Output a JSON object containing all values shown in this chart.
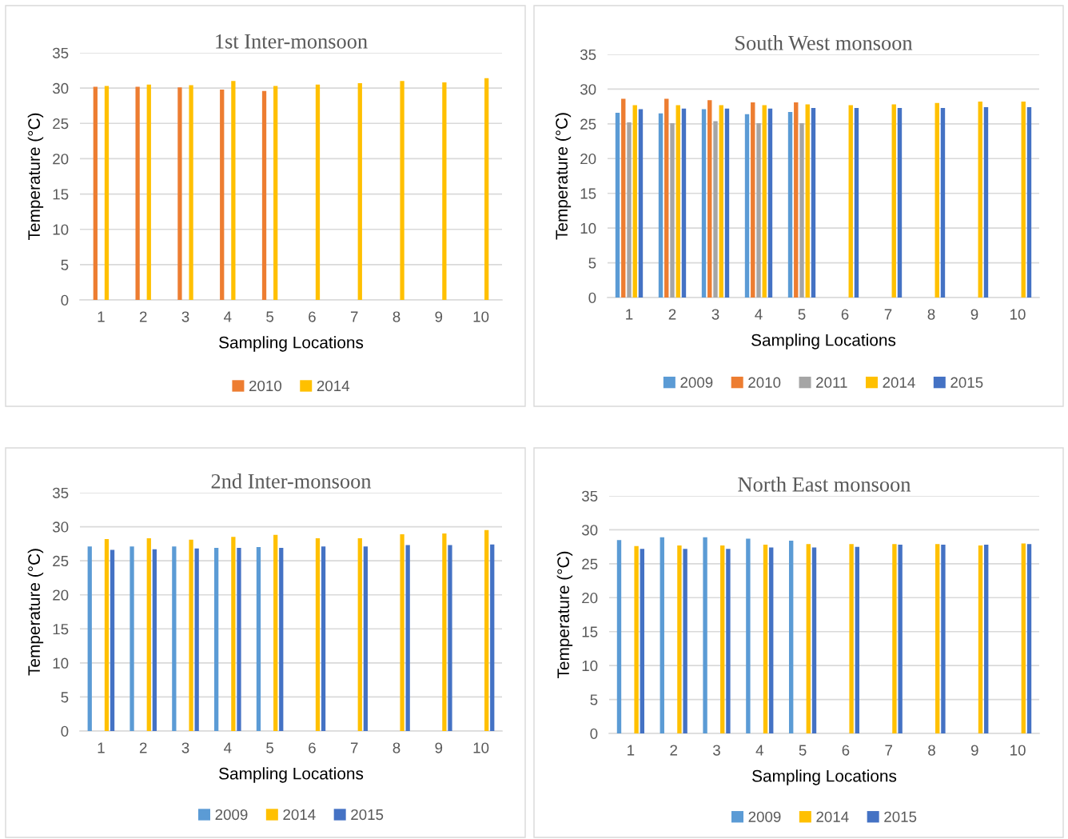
{
  "chart_data": [
    {
      "type": "bar",
      "title": "1st Inter-monsoon",
      "xlabel": "Sampling Locations",
      "ylabel": "Temperature (°C)",
      "categories": [
        "1",
        "2",
        "3",
        "4",
        "5",
        "6",
        "7",
        "8",
        "9",
        "10"
      ],
      "ylim": [
        0,
        35
      ],
      "yticks": [
        0,
        5,
        10,
        15,
        20,
        25,
        30,
        35
      ],
      "grid": "y",
      "legend": "bottom",
      "series": [
        {
          "values": [
            null,
            null,
            null,
            null,
            null,
            null,
            null,
            null,
            null,
            null
          ]
        },
        {
          "name": "2010",
          "color": "#ed7d31",
          "values": [
            30.2,
            30.2,
            30.1,
            29.8,
            29.6,
            null,
            null,
            null,
            null,
            null
          ]
        },
        {
          "values": [
            null,
            null,
            null,
            null,
            null,
            null,
            null,
            null,
            null,
            null
          ]
        },
        {
          "name": "2014",
          "color": "#ffc000",
          "values": [
            30.3,
            30.5,
            30.4,
            31.0,
            30.3,
            30.5,
            30.7,
            31.0,
            30.8,
            31.4
          ]
        },
        {
          "values": [
            null,
            null,
            null,
            null,
            null,
            null,
            null,
            null,
            null,
            null
          ]
        }
      ]
    },
    {
      "type": "bar",
      "title": "South West monsoon",
      "xlabel": "Sampling Locations",
      "ylabel": "Temperature (°C)",
      "categories": [
        "1",
        "2",
        "3",
        "4",
        "5",
        "6",
        "7",
        "8",
        "9",
        "10"
      ],
      "ylim": [
        0,
        35
      ],
      "yticks": [
        0,
        5,
        10,
        15,
        20,
        25,
        30,
        35
      ],
      "grid": "y",
      "legend": "bottom",
      "series": [
        {
          "name": "2009",
          "color": "#5b9bd5",
          "values": [
            26.6,
            26.5,
            27.1,
            26.4,
            26.7,
            null,
            null,
            null,
            null,
            null
          ]
        },
        {
          "name": "2010",
          "color": "#ed7d31",
          "values": [
            28.6,
            28.6,
            28.4,
            28.1,
            28.1,
            null,
            null,
            null,
            null,
            null
          ]
        },
        {
          "name": "2011",
          "color": "#a5a5a5",
          "values": [
            25.2,
            25.1,
            25.4,
            25.1,
            25.1,
            null,
            null,
            null,
            null,
            null
          ]
        },
        {
          "name": "2014",
          "color": "#ffc000",
          "values": [
            27.7,
            27.7,
            27.7,
            27.7,
            27.8,
            27.7,
            27.8,
            28.0,
            28.2,
            28.2
          ]
        },
        {
          "name": "2015",
          "color": "#4472c4",
          "values": [
            27.1,
            27.2,
            27.2,
            27.2,
            27.3,
            27.3,
            27.3,
            27.3,
            27.4,
            27.4
          ]
        }
      ]
    },
    {
      "type": "bar",
      "title": "2nd Inter-monsoon",
      "xlabel": "Sampling Locations",
      "ylabel": "Temperature (°C)",
      "categories": [
        "1",
        "2",
        "3",
        "4",
        "5",
        "6",
        "7",
        "8",
        "9",
        "10"
      ],
      "ylim": [
        0,
        35
      ],
      "yticks": [
        0,
        5,
        10,
        15,
        20,
        25,
        30,
        35
      ],
      "grid": "y",
      "legend": "bottom",
      "series": [
        {
          "name": "2009",
          "color": "#5b9bd5",
          "values": [
            27.1,
            27.1,
            27.1,
            26.9,
            27.0,
            null,
            null,
            null,
            null,
            null
          ]
        },
        {
          "values": [
            null,
            null,
            null,
            null,
            null,
            null,
            null,
            null,
            null,
            null
          ]
        },
        {
          "values": [
            null,
            null,
            null,
            null,
            null,
            null,
            null,
            null,
            null,
            null
          ]
        },
        {
          "name": "2014",
          "color": "#ffc000",
          "values": [
            28.2,
            28.3,
            28.1,
            28.5,
            28.8,
            28.3,
            28.3,
            28.9,
            29.0,
            29.5
          ]
        },
        {
          "name": "2015",
          "color": "#4472c4",
          "values": [
            26.6,
            26.7,
            26.8,
            26.9,
            26.9,
            27.1,
            27.1,
            27.3,
            27.3,
            27.4
          ]
        }
      ]
    },
    {
      "type": "bar",
      "title": "North East monsoon",
      "xlabel": "Sampling Locations",
      "ylabel": "Temperature (°C)",
      "categories": [
        "1",
        "2",
        "3",
        "4",
        "5",
        "6",
        "7",
        "8",
        "9",
        "10"
      ],
      "ylim": [
        0,
        35
      ],
      "yticks": [
        0,
        5,
        10,
        15,
        20,
        25,
        30,
        35
      ],
      "grid": "y",
      "legend": "bottom",
      "series": [
        {
          "name": "2009",
          "color": "#5b9bd5",
          "values": [
            28.5,
            28.9,
            28.9,
            28.7,
            28.4,
            null,
            null,
            null,
            null,
            null
          ]
        },
        {
          "values": [
            null,
            null,
            null,
            null,
            null,
            null,
            null,
            null,
            null,
            null
          ]
        },
        {
          "values": [
            null,
            null,
            null,
            null,
            null,
            null,
            null,
            null,
            null,
            null
          ]
        },
        {
          "name": "2014",
          "color": "#ffc000",
          "values": [
            27.6,
            27.7,
            27.7,
            27.8,
            27.9,
            27.9,
            27.9,
            27.9,
            27.7,
            28.0
          ]
        },
        {
          "name": "2015",
          "color": "#4472c4",
          "values": [
            27.2,
            27.2,
            27.2,
            27.4,
            27.4,
            27.5,
            27.8,
            27.8,
            27.8,
            27.9
          ]
        }
      ]
    }
  ]
}
